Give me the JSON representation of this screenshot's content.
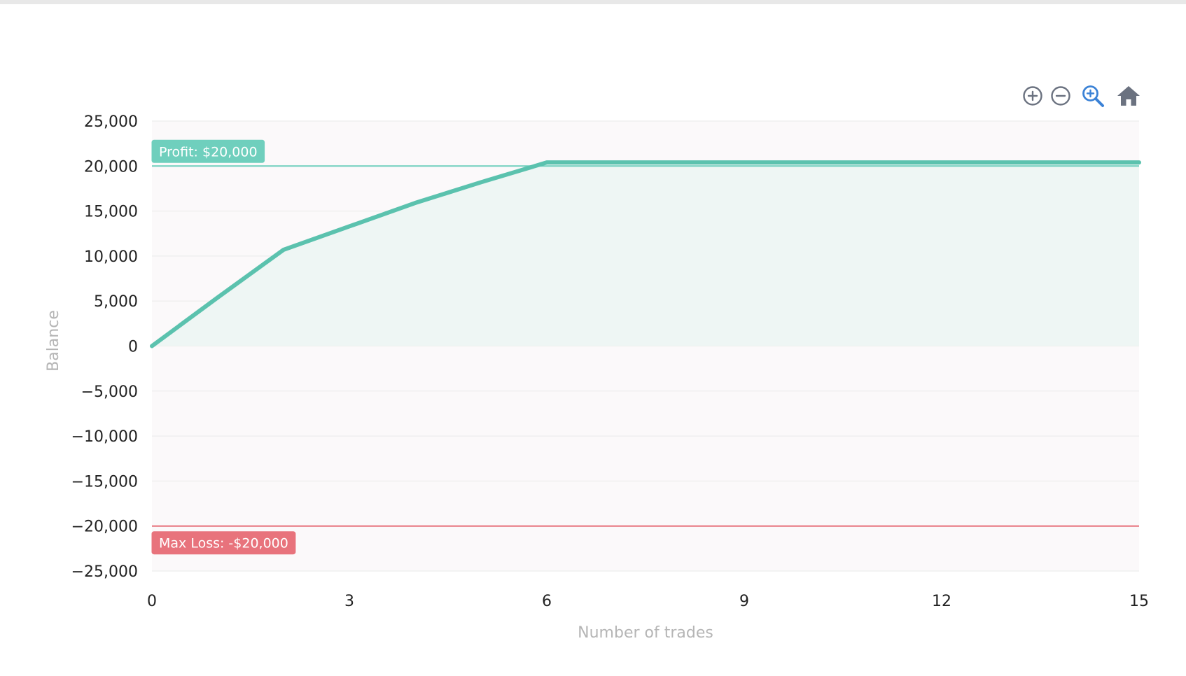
{
  "toolbar": {
    "icons": [
      "zoom-in-icon",
      "zoom-out-icon",
      "zoom-select-icon",
      "home-icon"
    ]
  },
  "colors": {
    "series": "#5bc2ae",
    "profit": "#6fcfbd",
    "loss": "#e8737c",
    "plot_bg": "#fbf9fa",
    "fill": "#eef6f4",
    "grid": "#ededed",
    "tick_text": "#222222",
    "axis_title": "#b5b5b5",
    "zoom_select_icon": "#3b82d6",
    "toolbar_icon": "#6b7280"
  },
  "chart_data": {
    "type": "area",
    "x": [
      0,
      1,
      2,
      3,
      4,
      5,
      6,
      7,
      8,
      9,
      10,
      11,
      12,
      13,
      14,
      15
    ],
    "series": [
      {
        "values": [
          0,
          5400,
          10700,
          13300,
          15900,
          18200,
          20400,
          20400,
          20400,
          20400,
          20400,
          20400,
          20400,
          20400,
          20400,
          20400
        ]
      }
    ],
    "xlabel": "Number of trades",
    "ylabel": "Balance",
    "xlim": [
      0,
      15
    ],
    "ylim": [
      -25000,
      25000
    ],
    "xticks": [
      0,
      3,
      6,
      9,
      12,
      15
    ],
    "xtick_labels": [
      "0",
      "3",
      "6",
      "9",
      "12",
      "15"
    ],
    "yticks": [
      25000,
      20000,
      15000,
      10000,
      5000,
      0,
      -5000,
      -10000,
      -15000,
      -20000,
      -25000
    ],
    "ytick_labels": [
      "25,000",
      "20,000",
      "15,000",
      "10,000",
      "5,000",
      "0",
      "−5,000",
      "−10,000",
      "−15,000",
      "−20,000",
      "−25,000"
    ],
    "grid": true,
    "annotations": [
      {
        "y": 20000,
        "label": "Profit: $20,000",
        "kind": "profit"
      },
      {
        "y": -20000,
        "label": "Max Loss: -$20,000",
        "kind": "loss"
      }
    ]
  }
}
